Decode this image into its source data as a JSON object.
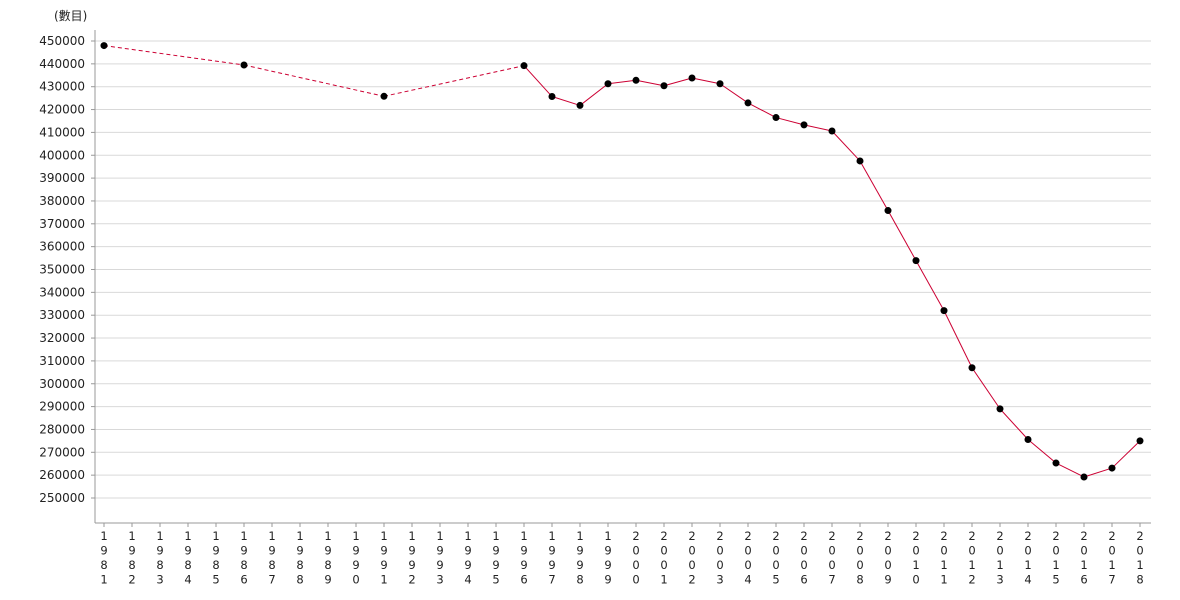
{
  "chart_data": {
    "type": "line",
    "title": "",
    "ylabel": "(數目)",
    "xlabel": "",
    "ylim": [
      250000,
      450000
    ],
    "ytick_step": 10000,
    "grid": true,
    "line_color": "#cc0033",
    "marker_color": "#000000",
    "x_ticks": [
      "1981",
      "1982",
      "1983",
      "1984",
      "1985",
      "1986",
      "1987",
      "1988",
      "1989",
      "1990",
      "1991",
      "1992",
      "1993",
      "1994",
      "1995",
      "1996",
      "1997",
      "1998",
      "1999",
      "2000",
      "2001",
      "2002",
      "2003",
      "2004",
      "2005",
      "2006",
      "2007",
      "2008",
      "2009",
      "2010",
      "2011",
      "2012",
      "2013",
      "2014",
      "2015",
      "2016",
      "2017",
      "2018"
    ],
    "series": [
      {
        "x": [
          1981,
          1986,
          1991,
          1996,
          1997,
          1998,
          1999,
          2000,
          2001,
          2002,
          2003,
          2004,
          2005,
          2006,
          2007,
          2008,
          2009,
          2010,
          2011,
          2012,
          2013,
          2014,
          2015,
          2016,
          2017,
          2018
        ],
        "values": [
          448000,
          439500,
          425800,
          439200,
          425700,
          421800,
          431300,
          432800,
          430400,
          433800,
          431300,
          422900,
          416500,
          413300,
          410600,
          397500,
          375800,
          353900,
          332000,
          307000,
          289000,
          275600,
          265300,
          259200,
          263100,
          275000
        ],
        "dashed_until": 1996
      }
    ]
  }
}
